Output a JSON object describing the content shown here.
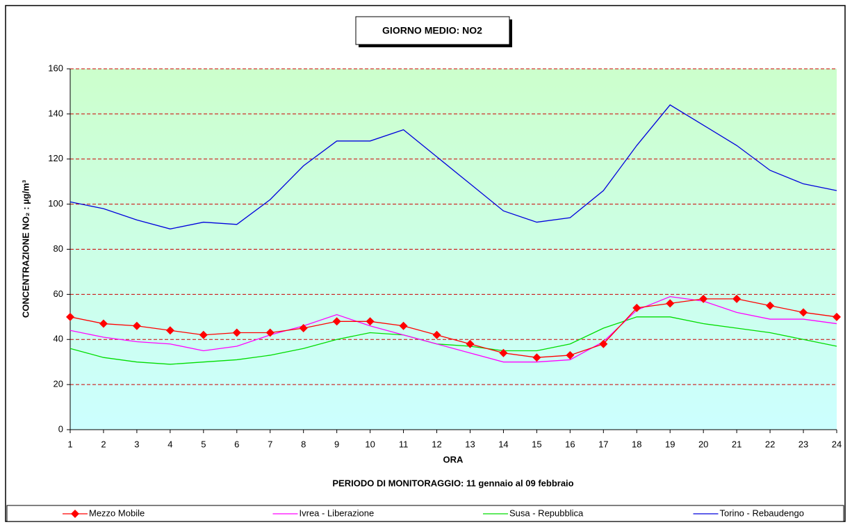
{
  "chart_data": {
    "type": "line",
    "title": "GIORNO MEDIO: NO2",
    "subtitle": "PERIODO DI MONITORAGGIO: 11 gennaio al 09 febbraio",
    "x_label": "ORA",
    "y_label": "CONCENTRAZIONE NO₂ :  µg/m³",
    "x": [
      1,
      2,
      3,
      4,
      5,
      6,
      7,
      8,
      9,
      10,
      11,
      12,
      13,
      14,
      15,
      16,
      17,
      18,
      19,
      20,
      21,
      22,
      23,
      24
    ],
    "xlim": [
      1,
      24
    ],
    "ylim": [
      0,
      160
    ],
    "yticks": [
      0,
      20,
      40,
      60,
      80,
      100,
      120,
      140,
      160
    ],
    "grid": true,
    "legend": "bottom",
    "series": [
      {
        "name": "Mezzo Mobile",
        "color": "#ff0000",
        "marker": "diamond",
        "values": [
          50,
          47,
          46,
          44,
          42,
          43,
          43,
          45,
          48,
          48,
          46,
          42,
          38,
          34,
          32,
          33,
          38,
          54,
          56,
          58,
          58,
          55,
          52,
          50
        ]
      },
      {
        "name": "Ivrea - Liberazione",
        "color": "#ff00ff",
        "values": [
          44,
          41,
          39,
          38,
          35,
          37,
          42,
          46,
          51,
          46,
          42,
          38,
          34,
          30,
          30,
          31,
          39,
          53,
          59,
          57,
          52,
          49,
          49,
          47
        ]
      },
      {
        "name": "Susa - Repubblica",
        "color": "#00dd00",
        "values": [
          36,
          32,
          30,
          29,
          30,
          31,
          33,
          36,
          40,
          43,
          42,
          38,
          37,
          35,
          35,
          38,
          45,
          50,
          50,
          47,
          45,
          43,
          40,
          37
        ]
      },
      {
        "name": "Torino - Rebaudengo",
        "color": "#0000dd",
        "values": [
          101,
          98,
          93,
          89,
          92,
          91,
          102,
          117,
          128,
          128,
          133,
          121,
          109,
          97,
          92,
          94,
          106,
          126,
          144,
          135,
          126,
          115,
          109,
          106
        ]
      }
    ]
  }
}
